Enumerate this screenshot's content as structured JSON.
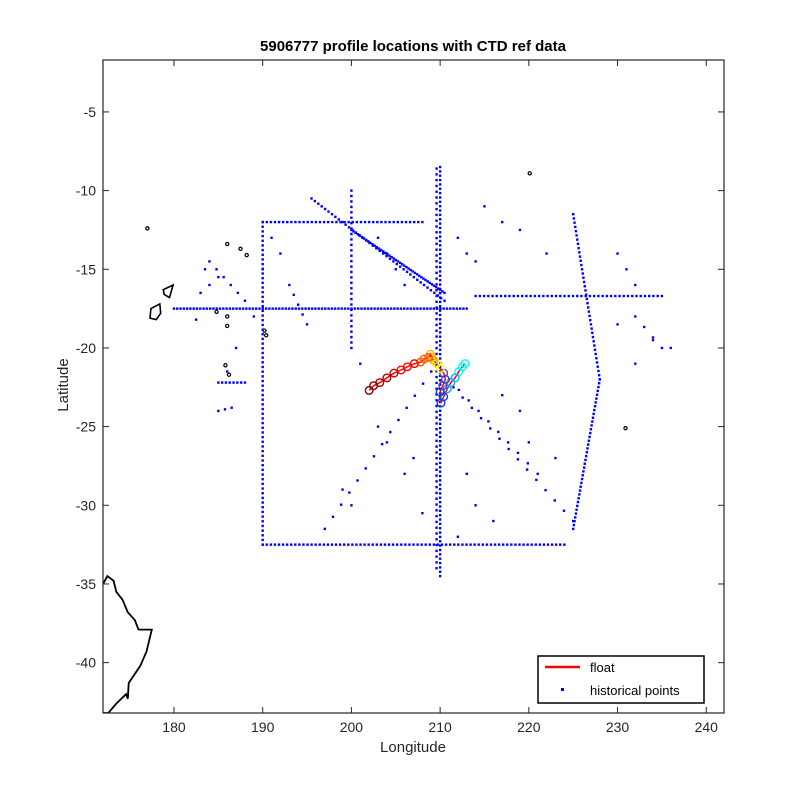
{
  "chart_data": {
    "type": "scatter",
    "title": "5906777 profile locations with CTD ref data",
    "xlabel": "Longitude",
    "ylabel": "Latitude",
    "xlim": [
      172,
      242
    ],
    "ylim": [
      -43.2,
      -1.7
    ],
    "xticks": [
      180,
      190,
      200,
      210,
      220,
      230,
      240
    ],
    "yticks": [
      -40,
      -35,
      -30,
      -25,
      -20,
      -15,
      -10,
      -5
    ],
    "grid": false,
    "legend": {
      "placement": "bottom-right",
      "entries": [
        {
          "label": "float",
          "color": "#ff0000",
          "marker": "line"
        },
        {
          "label": "historical points",
          "color": "#0000ff",
          "marker": "dot"
        }
      ]
    },
    "series": [
      {
        "name": "float",
        "color_scale": [
          "#00ffff",
          "#00b4ff",
          "#0040ff",
          "#4040c0",
          "#ffff00",
          "#ffb000",
          "#ff6000",
          "#ff0000",
          "#c00000",
          "#800000"
        ],
        "x": [
          212.8,
          212.5,
          212.1,
          211.7,
          211.2,
          210.8,
          210.4,
          210.1,
          210.0,
          210.3,
          210.6,
          210.4,
          210.0,
          209.6,
          209.3,
          209.0,
          208.9,
          208.7,
          208.2,
          207.8,
          207.1,
          206.3,
          205.6,
          204.8,
          204.0,
          203.2,
          202.5,
          202.0
        ],
        "y": [
          -21.0,
          -21.2,
          -21.5,
          -21.9,
          -22.2,
          -22.6,
          -23.1,
          -23.5,
          -22.8,
          -22.4,
          -22.0,
          -21.6,
          -21.3,
          -21.0,
          -20.8,
          -20.6,
          -20.4,
          -20.6,
          -20.7,
          -20.9,
          -21.0,
          -21.2,
          -21.4,
          -21.6,
          -21.9,
          -22.2,
          -22.4,
          -22.7
        ]
      },
      {
        "name": "historical points",
        "color": "#0000ff",
        "segments": [
          {
            "from": [
              190,
              -32.5
            ],
            "to": [
              224,
              -32.5
            ],
            "n": 75
          },
          {
            "from": [
              190,
              -12
            ],
            "to": [
              190,
              -32.5
            ],
            "n": 70
          },
          {
            "from": [
              210,
              -8.5
            ],
            "to": [
              210,
              -34.5
            ],
            "n": 95
          },
          {
            "from": [
              209.6,
              -8.6
            ],
            "to": [
              209.6,
              -34.0
            ],
            "n": 70
          },
          {
            "from": [
              180,
              -17.5
            ],
            "to": [
              213,
              -17.5
            ],
            "n": 90
          },
          {
            "from": [
              214,
              -16.7
            ],
            "to": [
              235,
              -16.7
            ],
            "n": 45
          },
          {
            "from": [
              190,
              -12
            ],
            "to": [
              208,
              -12
            ],
            "n": 40
          },
          {
            "from": [
              200,
              -12.5
            ],
            "to": [
              210.5,
              -16.5
            ],
            "n": 45
          },
          {
            "from": [
              195.5,
              -10.5
            ],
            "to": [
              210.5,
              -17
            ],
            "n": 40
          },
          {
            "from": [
              200,
              -10
            ],
            "to": [
              200,
              -20
            ],
            "n": 30
          },
          {
            "from": [
              225,
              -11.5
            ],
            "to": [
              228,
              -22
            ],
            "n": 40
          },
          {
            "from": [
              228,
              -22
            ],
            "to": [
              225,
              -31.5
            ],
            "n": 40
          },
          {
            "from": [
              209,
              -21.5
            ],
            "to": [
              197,
              -31.5
            ],
            "n": 14
          },
          {
            "from": [
              211.5,
              -22.5
            ],
            "to": [
              225,
              -31
            ],
            "n": 14
          },
          {
            "from": [
              211,
              -22
            ],
            "to": [
              221,
              -28
            ],
            "n": 10
          },
          {
            "from": [
              188,
              -17
            ],
            "to": [
              184,
              -14.5
            ],
            "n": 6
          },
          {
            "from": [
              185,
              -22.2
            ],
            "to": [
              188,
              -22.2
            ],
            "n": 8
          },
          {
            "from": [
              185,
              -24
            ],
            "to": [
              186.5,
              -23.8
            ],
            "n": 3
          },
          {
            "from": [
              193,
              -16
            ],
            "to": [
              195,
              -18.5
            ],
            "n": 5
          },
          {
            "from": [
              232,
              -18
            ],
            "to": [
              235,
              -20
            ],
            "n": 4
          }
        ],
        "scatter": [
          [
            183.5,
            -15
          ],
          [
            184,
            -16
          ],
          [
            185,
            -15.5
          ],
          [
            182.5,
            -18.2
          ],
          [
            183,
            -16.5
          ],
          [
            203,
            -13
          ],
          [
            204,
            -14
          ],
          [
            205,
            -15
          ],
          [
            206,
            -16
          ],
          [
            212,
            -13
          ],
          [
            213,
            -14
          ],
          [
            214,
            -14.5
          ],
          [
            215,
            -11
          ],
          [
            217,
            -12
          ],
          [
            219,
            -12.5
          ],
          [
            222,
            -14
          ],
          [
            230,
            -14
          ],
          [
            231,
            -15
          ],
          [
            232,
            -16
          ],
          [
            230,
            -18.5
          ],
          [
            232,
            -21
          ],
          [
            234,
            -19.5
          ],
          [
            236,
            -20
          ],
          [
            217,
            -23
          ],
          [
            219,
            -24
          ],
          [
            203,
            -25
          ],
          [
            204,
            -26
          ],
          [
            206,
            -28
          ],
          [
            214,
            -30
          ],
          [
            216,
            -31
          ],
          [
            212,
            -32
          ],
          [
            199,
            -29
          ],
          [
            200,
            -30
          ],
          [
            208,
            -30.5
          ],
          [
            191,
            -13
          ],
          [
            190,
            -15
          ],
          [
            192,
            -14
          ],
          [
            187,
            -20
          ],
          [
            186,
            -21.5
          ],
          [
            189,
            -18
          ],
          [
            201,
            -21
          ],
          [
            207,
            -27
          ],
          [
            213,
            -28
          ],
          [
            220,
            -26
          ],
          [
            223,
            -27
          ]
        ]
      }
    ],
    "coastlines": [
      {
        "name": "New Zealand",
        "points": [
          [
            172,
            -35
          ],
          [
            172.5,
            -34.5
          ],
          [
            173.2,
            -34.8
          ],
          [
            173.5,
            -35.5
          ],
          [
            174.2,
            -36
          ],
          [
            174.8,
            -36.8
          ],
          [
            175.6,
            -37.3
          ],
          [
            176.0,
            -37.9
          ],
          [
            177.5,
            -37.9
          ],
          [
            176.9,
            -39.3
          ],
          [
            176.2,
            -40.2
          ],
          [
            174.9,
            -41.3
          ],
          [
            174.8,
            -42.3
          ],
          [
            174.6,
            -42.0
          ],
          [
            173.5,
            -42.6
          ],
          [
            172.6,
            -43.2
          ],
          [
            172,
            -43.2
          ]
        ]
      }
    ],
    "islands": [
      [
        177,
        -12.4
      ],
      [
        186,
        -13.4
      ],
      [
        187.5,
        -13.7
      ],
      [
        188.2,
        -14.1
      ],
      [
        190.2,
        -18.9
      ],
      [
        190.4,
        -19.2
      ],
      [
        184.8,
        -17.7
      ],
      [
        186,
        -18.6
      ],
      [
        185.8,
        -21.1
      ],
      [
        186.2,
        -21.7
      ],
      [
        220.1,
        -8.9
      ],
      [
        230.9,
        -25.1
      ],
      [
        186.0,
        -18.0
      ]
    ],
    "fiji": [
      [
        178.4,
        -17.2
      ],
      [
        177.4,
        -17.5
      ],
      [
        177.3,
        -18.1
      ],
      [
        178.0,
        -18.2
      ],
      [
        178.5,
        -17.8
      ]
    ],
    "fiji2": [
      [
        178.8,
        -16.3
      ],
      [
        179.9,
        -16.0
      ],
      [
        179.5,
        -16.8
      ],
      [
        178.9,
        -16.6
      ]
    ]
  }
}
